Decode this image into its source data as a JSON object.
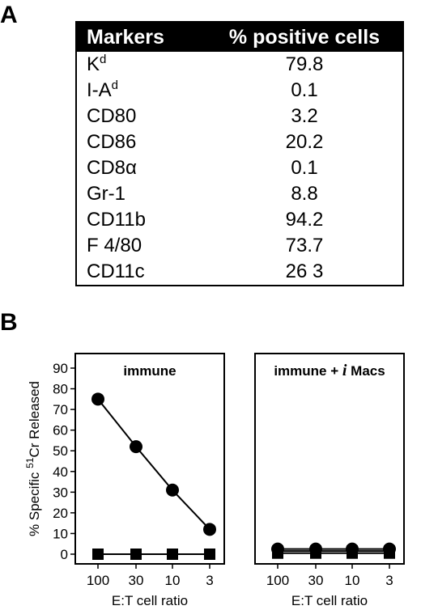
{
  "panel_a": {
    "letter": "A",
    "header": {
      "markers": "Markers",
      "percent": "% positive cells"
    },
    "rows": [
      {
        "marker": "K",
        "sup": "d",
        "suffix": "",
        "value": "79.8"
      },
      {
        "marker": "I-A",
        "sup": "d",
        "suffix": "",
        "value": "0.1"
      },
      {
        "marker": "CD80",
        "sup": "",
        "suffix": "",
        "value": "3.2"
      },
      {
        "marker": "CD86",
        "sup": "",
        "suffix": "",
        "value": "20.2"
      },
      {
        "marker": "CD8",
        "sup": "",
        "suffix": "α",
        "value": "0.1"
      },
      {
        "marker": "Gr-1",
        "sup": "",
        "suffix": "",
        "value": "8.8"
      },
      {
        "marker": "CD11b",
        "sup": "",
        "suffix": "",
        "value": "94.2"
      },
      {
        "marker": "F 4/80",
        "sup": "",
        "suffix": "",
        "value": "73.7"
      },
      {
        "marker": "CD11c",
        "sup": "",
        "suffix": "",
        "value": "26 3"
      }
    ]
  },
  "panel_b": {
    "letter": "B",
    "ylabel_parts": [
      "% Specific ",
      "51",
      "Cr Released"
    ]
  },
  "chart_data": [
    {
      "type": "line",
      "title": "immune",
      "title_parts": [
        {
          "text": "immune ",
          "italic": false
        }
      ],
      "categories": [
        "100",
        "30",
        "10",
        "3"
      ],
      "xlabel": "E:T cell ratio",
      "ylabel": "% Specific 51Cr Released",
      "ylim": [
        0,
        90
      ],
      "yticks": [
        0,
        10,
        20,
        30,
        40,
        50,
        60,
        70,
        80,
        90
      ],
      "grid": false,
      "series": [
        {
          "values": [
            75,
            52,
            31,
            12
          ],
          "marker": "circle"
        },
        {
          "values": [
            0,
            0,
            0,
            0
          ],
          "marker": "square"
        }
      ]
    },
    {
      "type": "line",
      "title": "immune + i Macs",
      "title_parts": [
        {
          "text": "immune + ",
          "italic": false
        },
        {
          "text": "i",
          "italic": true
        },
        {
          "text": " Macs",
          "italic": false
        }
      ],
      "categories": [
        "100",
        "30",
        "10",
        "3"
      ],
      "xlabel": "E:T cell ratio",
      "ylim": [
        0,
        90
      ],
      "grid": false,
      "series": [
        {
          "values": [
            2.5,
            2.5,
            2.5,
            2.5
          ],
          "marker": "circle"
        },
        {
          "values": [
            1.5,
            1.5,
            1.5,
            1.5
          ],
          "marker": "square"
        },
        {
          "values": [
            0.5,
            0.5,
            0.5,
            0.5
          ],
          "marker": "square"
        }
      ]
    }
  ]
}
